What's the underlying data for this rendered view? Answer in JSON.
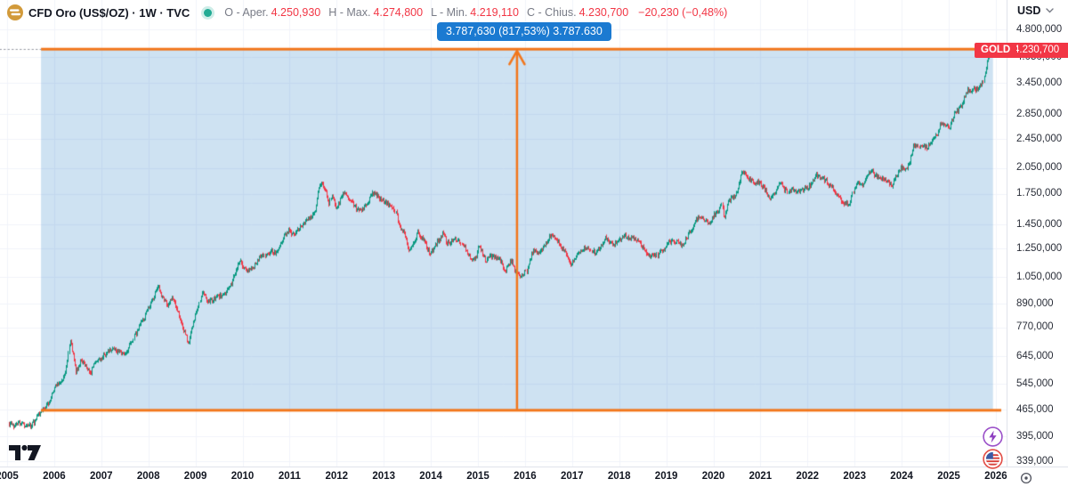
{
  "header": {
    "title": "CFD Oro (US$/OZ) · 1W · TVC",
    "ohlc": {
      "open_label": "O - Aper.",
      "open": "4.250,930",
      "high_label": "H - Max.",
      "high": "4.274,800",
      "low_label": "L - Min.",
      "low": "4.219,110",
      "close_label": "C - Chius.",
      "close": "4.230,700",
      "change": "−20,230 (−0,48%)"
    },
    "currency_button": "USD"
  },
  "measure_tooltip": "3.787,630 (817,53%) 3.787.630",
  "last_price_tag": {
    "symbol": "GOLD",
    "price": "4.230,700"
  },
  "price_axis_ticks": [
    {
      "label": "4.800,000",
      "value": 4800
    },
    {
      "label": "4.050,000",
      "value": 4050
    },
    {
      "label": "3.450,000",
      "value": 3450
    },
    {
      "label": "2.850,000",
      "value": 2850
    },
    {
      "label": "2.450,000",
      "value": 2450
    },
    {
      "label": "2.050,000",
      "value": 2050
    },
    {
      "label": "1.750,000",
      "value": 1750
    },
    {
      "label": "1.450,000",
      "value": 1450
    },
    {
      "label": "1.250,000",
      "value": 1250
    },
    {
      "label": "1.050,000",
      "value": 1050
    },
    {
      "label": "890,000",
      "value": 890
    },
    {
      "label": "770,000",
      "value": 770
    },
    {
      "label": "645,000",
      "value": 645
    },
    {
      "label": "545,000",
      "value": 545
    },
    {
      "label": "465,000",
      "value": 465
    },
    {
      "label": "395,000",
      "value": 395
    },
    {
      "label": "339,000",
      "value": 339
    }
  ],
  "time_axis_ticks": [
    {
      "label": "2005",
      "value": 2005
    },
    {
      "label": "2006",
      "value": 2006
    },
    {
      "label": "2007",
      "value": 2007
    },
    {
      "label": "2008",
      "value": 2008
    },
    {
      "label": "2009",
      "value": 2009
    },
    {
      "label": "2010",
      "value": 2010
    },
    {
      "label": "2011",
      "value": 2011
    },
    {
      "label": "2012",
      "value": 2012
    },
    {
      "label": "2013",
      "value": 2013
    },
    {
      "label": "2014",
      "value": 2014
    },
    {
      "label": "2015",
      "value": 2015
    },
    {
      "label": "2016",
      "value": 2016
    },
    {
      "label": "2017",
      "value": 2017
    },
    {
      "label": "2018",
      "value": 2018
    },
    {
      "label": "2019",
      "value": 2019
    },
    {
      "label": "2020",
      "value": 2020
    },
    {
      "label": "2021",
      "value": 2021
    },
    {
      "label": "2022",
      "value": 2022
    },
    {
      "label": "2023",
      "value": 2023
    },
    {
      "label": "2024",
      "value": 2024
    },
    {
      "label": "2025",
      "value": 2025
    },
    {
      "label": "2026",
      "value": 2026
    }
  ],
  "colors": {
    "up": "#089981",
    "down": "#F23645",
    "measure_orange": "#F2761B",
    "measure_fill": "rgba(10,110,190,0.20)",
    "tooltip_blue": "#1B7AD1",
    "price_label_red": "#F23645",
    "grid": "#F0F3FA",
    "dotted_line": "#9598A1",
    "text_dark": "#131722",
    "text_gray": "#787B86"
  },
  "chart_data": {
    "type": "candlestick",
    "symbol": "CFD Oro (US$/OZ)",
    "exchange": "TVC",
    "timeframe": "1W",
    "y_scale": "log",
    "x_range": [
      2005.0,
      2026.1
    ],
    "visible_price_range": [
      339,
      4800
    ],
    "last_candle": {
      "open": 4250.93,
      "high": 4274.8,
      "low": 4219.11,
      "close": 4230.7,
      "change": -20.23,
      "change_pct": -0.48
    },
    "measure": {
      "from_price": 463.3,
      "to_price": 4250.93,
      "t_start": 2005.72,
      "t_end": 2025.94,
      "delta": "3.787,630",
      "delta_pct": "817,53%"
    },
    "anchors": [
      [
        2005.03,
        427
      ],
      [
        2005.12,
        420
      ],
      [
        2005.22,
        432
      ],
      [
        2005.32,
        428
      ],
      [
        2005.42,
        421
      ],
      [
        2005.52,
        424
      ],
      [
        2005.6,
        437
      ],
      [
        2005.68,
        455
      ],
      [
        2005.75,
        468
      ],
      [
        2005.85,
        477
      ],
      [
        2005.95,
        510
      ],
      [
        2006.05,
        545
      ],
      [
        2006.15,
        555
      ],
      [
        2006.25,
        590
      ],
      [
        2006.33,
        715
      ],
      [
        2006.4,
        640
      ],
      [
        2006.45,
        585
      ],
      [
        2006.55,
        630
      ],
      [
        2006.65,
        615
      ],
      [
        2006.75,
        580
      ],
      [
        2006.85,
        615
      ],
      [
        2006.95,
        630
      ],
      [
        2007.05,
        650
      ],
      [
        2007.15,
        665
      ],
      [
        2007.25,
        680
      ],
      [
        2007.35,
        660
      ],
      [
        2007.45,
        655
      ],
      [
        2007.55,
        670
      ],
      [
        2007.62,
        700
      ],
      [
        2007.72,
        740
      ],
      [
        2007.82,
        790
      ],
      [
        2007.92,
        830
      ],
      [
        2008.0,
        875
      ],
      [
        2008.1,
        925
      ],
      [
        2008.2,
        1000
      ],
      [
        2008.3,
        915
      ],
      [
        2008.4,
        880
      ],
      [
        2008.5,
        925
      ],
      [
        2008.6,
        870
      ],
      [
        2008.7,
        790
      ],
      [
        2008.78,
        740
      ],
      [
        2008.85,
        700
      ],
      [
        2008.95,
        790
      ],
      [
        2009.05,
        880
      ],
      [
        2009.15,
        960
      ],
      [
        2009.25,
        900
      ],
      [
        2009.35,
        915
      ],
      [
        2009.45,
        930
      ],
      [
        2009.55,
        945
      ],
      [
        2009.65,
        960
      ],
      [
        2009.75,
        1000
      ],
      [
        2009.85,
        1090
      ],
      [
        2009.93,
        1170
      ],
      [
        2010.0,
        1110
      ],
      [
        2010.1,
        1095
      ],
      [
        2010.2,
        1110
      ],
      [
        2010.3,
        1140
      ],
      [
        2010.4,
        1210
      ],
      [
        2010.5,
        1200
      ],
      [
        2010.6,
        1230
      ],
      [
        2010.7,
        1220
      ],
      [
        2010.8,
        1300
      ],
      [
        2010.9,
        1370
      ],
      [
        2010.97,
        1400
      ],
      [
        2011.05,
        1360
      ],
      [
        2011.15,
        1400
      ],
      [
        2011.25,
        1440
      ],
      [
        2011.35,
        1490
      ],
      [
        2011.45,
        1510
      ],
      [
        2011.55,
        1590
      ],
      [
        2011.63,
        1840
      ],
      [
        2011.68,
        1870
      ],
      [
        2011.73,
        1820
      ],
      [
        2011.78,
        1750
      ],
      [
        2011.83,
        1650
      ],
      [
        2011.9,
        1740
      ],
      [
        2011.97,
        1600
      ],
      [
        2012.03,
        1650
      ],
      [
        2012.1,
        1720
      ],
      [
        2012.17,
        1780
      ],
      [
        2012.25,
        1670
      ],
      [
        2012.33,
        1650
      ],
      [
        2012.42,
        1590
      ],
      [
        2012.5,
        1580
      ],
      [
        2012.58,
        1620
      ],
      [
        2012.67,
        1660
      ],
      [
        2012.75,
        1770
      ],
      [
        2012.83,
        1740
      ],
      [
        2012.92,
        1700
      ],
      [
        2013.0,
        1670
      ],
      [
        2013.08,
        1650
      ],
      [
        2013.17,
        1610
      ],
      [
        2013.25,
        1570
      ],
      [
        2013.3,
        1470
      ],
      [
        2013.35,
        1400
      ],
      [
        2013.42,
        1390
      ],
      [
        2013.48,
        1290
      ],
      [
        2013.52,
        1230
      ],
      [
        2013.6,
        1290
      ],
      [
        2013.67,
        1330
      ],
      [
        2013.72,
        1390
      ],
      [
        2013.78,
        1330
      ],
      [
        2013.85,
        1320
      ],
      [
        2013.92,
        1250
      ],
      [
        2013.98,
        1210
      ],
      [
        2014.05,
        1250
      ],
      [
        2014.12,
        1300
      ],
      [
        2014.2,
        1330
      ],
      [
        2014.27,
        1380
      ],
      [
        2014.33,
        1300
      ],
      [
        2014.4,
        1290
      ],
      [
        2014.47,
        1315
      ],
      [
        2014.53,
        1320
      ],
      [
        2014.6,
        1310
      ],
      [
        2014.67,
        1290
      ],
      [
        2014.75,
        1230
      ],
      [
        2014.82,
        1190
      ],
      [
        2014.88,
        1160
      ],
      [
        2014.95,
        1190
      ],
      [
        2015.02,
        1280
      ],
      [
        2015.08,
        1220
      ],
      [
        2015.15,
        1160
      ],
      [
        2015.22,
        1180
      ],
      [
        2015.3,
        1200
      ],
      [
        2015.38,
        1180
      ],
      [
        2015.45,
        1170
      ],
      [
        2015.52,
        1130
      ],
      [
        2015.58,
        1090
      ],
      [
        2015.65,
        1130
      ],
      [
        2015.72,
        1160
      ],
      [
        2015.78,
        1100
      ],
      [
        2015.85,
        1070
      ],
      [
        2015.92,
        1060
      ],
      [
        2016.05,
        1100
      ],
      [
        2016.12,
        1200
      ],
      [
        2016.18,
        1240
      ],
      [
        2016.25,
        1220
      ],
      [
        2016.33,
        1240
      ],
      [
        2016.42,
        1290
      ],
      [
        2016.5,
        1340
      ],
      [
        2016.55,
        1360
      ],
      [
        2016.62,
        1340
      ],
      [
        2016.7,
        1310
      ],
      [
        2016.77,
        1260
      ],
      [
        2016.85,
        1220
      ],
      [
        2016.92,
        1160
      ],
      [
        2016.97,
        1130
      ],
      [
        2017.03,
        1160
      ],
      [
        2017.1,
        1200
      ],
      [
        2017.18,
        1240
      ],
      [
        2017.25,
        1255
      ],
      [
        2017.33,
        1260
      ],
      [
        2017.42,
        1230
      ],
      [
        2017.5,
        1220
      ],
      [
        2017.57,
        1250
      ],
      [
        2017.65,
        1290
      ],
      [
        2017.7,
        1340
      ],
      [
        2017.78,
        1300
      ],
      [
        2017.85,
        1280
      ],
      [
        2017.92,
        1290
      ],
      [
        2018.05,
        1330
      ],
      [
        2018.12,
        1350
      ],
      [
        2018.2,
        1330
      ],
      [
        2018.28,
        1340
      ],
      [
        2018.35,
        1320
      ],
      [
        2018.42,
        1300
      ],
      [
        2018.5,
        1255
      ],
      [
        2018.57,
        1230
      ],
      [
        2018.65,
        1190
      ],
      [
        2018.72,
        1200
      ],
      [
        2018.8,
        1200
      ],
      [
        2018.88,
        1230
      ],
      [
        2018.95,
        1250
      ],
      [
        2019.02,
        1290
      ],
      [
        2019.1,
        1310
      ],
      [
        2019.17,
        1300
      ],
      [
        2019.25,
        1295
      ],
      [
        2019.33,
        1280
      ],
      [
        2019.42,
        1330
      ],
      [
        2019.5,
        1400
      ],
      [
        2019.57,
        1420
      ],
      [
        2019.63,
        1500
      ],
      [
        2019.7,
        1520
      ],
      [
        2019.78,
        1500
      ],
      [
        2019.85,
        1470
      ],
      [
        2019.92,
        1470
      ],
      [
        2019.98,
        1515
      ],
      [
        2020.05,
        1560
      ],
      [
        2020.12,
        1580
      ],
      [
        2020.18,
        1640
      ],
      [
        2020.22,
        1500
      ],
      [
        2020.28,
        1620
      ],
      [
        2020.35,
        1700
      ],
      [
        2020.42,
        1720
      ],
      [
        2020.5,
        1770
      ],
      [
        2020.55,
        1900
      ],
      [
        2020.6,
        2030
      ],
      [
        2020.65,
        1980
      ],
      [
        2020.72,
        1930
      ],
      [
        2020.8,
        1900
      ],
      [
        2020.88,
        1870
      ],
      [
        2020.95,
        1880
      ],
      [
        2021.02,
        1850
      ],
      [
        2021.08,
        1810
      ],
      [
        2021.15,
        1730
      ],
      [
        2021.22,
        1700
      ],
      [
        2021.3,
        1740
      ],
      [
        2021.38,
        1830
      ],
      [
        2021.43,
        1880
      ],
      [
        2021.5,
        1800
      ],
      [
        2021.57,
        1770
      ],
      [
        2021.63,
        1790
      ],
      [
        2021.7,
        1800
      ],
      [
        2021.78,
        1760
      ],
      [
        2021.85,
        1790
      ],
      [
        2021.92,
        1800
      ],
      [
        2022.05,
        1840
      ],
      [
        2022.1,
        1870
      ],
      [
        2022.17,
        1970
      ],
      [
        2022.22,
        1950
      ],
      [
        2022.3,
        1930
      ],
      [
        2022.38,
        1900
      ],
      [
        2022.45,
        1850
      ],
      [
        2022.53,
        1820
      ],
      [
        2022.6,
        1740
      ],
      [
        2022.68,
        1700
      ],
      [
        2022.75,
        1650
      ],
      [
        2022.82,
        1660
      ],
      [
        2022.88,
        1630
      ],
      [
        2022.95,
        1750
      ],
      [
        2023.02,
        1830
      ],
      [
        2023.08,
        1870
      ],
      [
        2023.15,
        1840
      ],
      [
        2023.22,
        1900
      ],
      [
        2023.3,
        1980
      ],
      [
        2023.35,
        2010
      ],
      [
        2023.42,
        1970
      ],
      [
        2023.5,
        1930
      ],
      [
        2023.57,
        1940
      ],
      [
        2023.65,
        1920
      ],
      [
        2023.72,
        1870
      ],
      [
        2023.8,
        1840
      ],
      [
        2023.85,
        1930
      ],
      [
        2023.92,
        1990
      ],
      [
        2023.98,
        2050
      ],
      [
        2024.05,
        2030
      ],
      [
        2024.12,
        2050
      ],
      [
        2024.18,
        2150
      ],
      [
        2024.25,
        2330
      ],
      [
        2024.32,
        2350
      ],
      [
        2024.4,
        2320
      ],
      [
        2024.47,
        2330
      ],
      [
        2024.53,
        2320
      ],
      [
        2024.6,
        2400
      ],
      [
        2024.68,
        2480
      ],
      [
        2024.75,
        2520
      ],
      [
        2024.82,
        2720
      ],
      [
        2024.88,
        2680
      ],
      [
        2024.95,
        2640
      ],
      [
        2025.02,
        2650
      ],
      [
        2025.08,
        2800
      ],
      [
        2025.15,
        2900
      ],
      [
        2025.22,
        2940
      ],
      [
        2025.28,
        3050
      ],
      [
        2025.35,
        3200
      ],
      [
        2025.4,
        3320
      ],
      [
        2025.45,
        3280
      ],
      [
        2025.52,
        3330
      ],
      [
        2025.58,
        3300
      ],
      [
        2025.63,
        3350
      ],
      [
        2025.68,
        3400
      ],
      [
        2025.72,
        3480
      ],
      [
        2025.76,
        3680
      ],
      [
        2025.8,
        3900
      ],
      [
        2025.83,
        4080
      ],
      [
        2025.85,
        4180
      ]
    ]
  }
}
